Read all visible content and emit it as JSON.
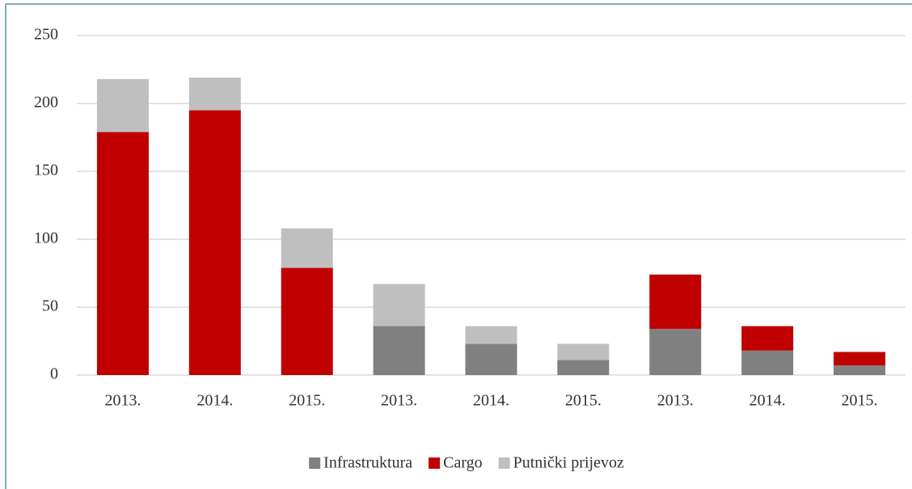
{
  "chart_data": {
    "type": "stacked_bar",
    "categories": [
      "2013.",
      "2014.",
      "2015.",
      "2013.",
      "2014.",
      "2015.",
      "2013.",
      "2014.",
      "2015."
    ],
    "series": [
      {
        "name": "Infrastruktura",
        "color": "#808080",
        "values": [
          0,
          0,
          0,
          36,
          23,
          11,
          34,
          18,
          7
        ]
      },
      {
        "name": "Cargo",
        "color": "#c00000",
        "values": [
          179,
          195,
          79,
          0,
          0,
          0,
          40,
          18,
          10
        ]
      },
      {
        "name": "Putnički prijevoz",
        "color": "#bfbfbf",
        "values": [
          39,
          24,
          29,
          31,
          13,
          12,
          0,
          0,
          0
        ]
      }
    ],
    "ylim": [
      0,
      250
    ],
    "yticks": [
      0,
      50,
      100,
      150,
      200,
      250
    ],
    "grid": true,
    "legend": "bottom"
  }
}
